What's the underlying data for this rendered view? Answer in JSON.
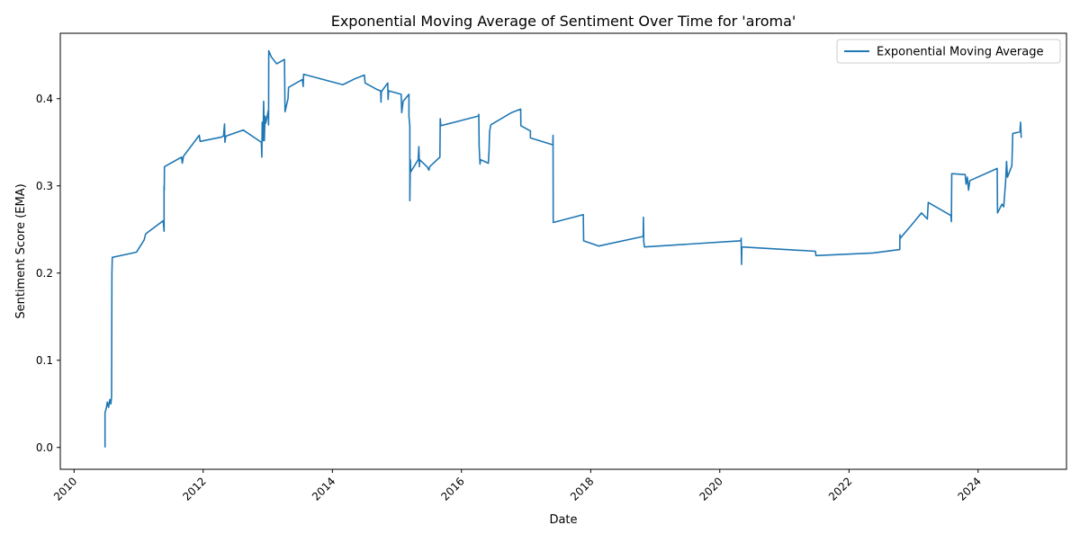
{
  "colors": {
    "line": "#1f77b4",
    "axis": "#000000",
    "legend_border": "#cccccc"
  },
  "chart_data": {
    "type": "line",
    "title": "Exponential Moving Average of Sentiment Over Time for 'aroma'",
    "xlabel": "Date",
    "ylabel": "Sentiment Score (EMA)",
    "legend": {
      "placement": "top-right",
      "entries": [
        "Exponential Moving Average"
      ]
    },
    "grid": false,
    "xlim": [
      "2009-10-15",
      "2025-05-15"
    ],
    "ylim": [
      -0.025,
      0.475
    ],
    "x_ticks": [
      "2010",
      "2012",
      "2014",
      "2016",
      "2018",
      "2020",
      "2022",
      "2024"
    ],
    "y_ticks": [
      "0.0",
      "0.1",
      "0.2",
      "0.3",
      "0.4"
    ],
    "series": [
      {
        "name": "Exponential Moving Average",
        "points": [
          [
            "2010-06-25",
            0.0
          ],
          [
            "2010-06-25",
            0.04
          ],
          [
            "2010-07-01",
            0.044
          ],
          [
            "2010-07-08",
            0.052
          ],
          [
            "2010-07-15",
            0.046
          ],
          [
            "2010-07-22",
            0.055
          ],
          [
            "2010-07-28",
            0.05
          ],
          [
            "2010-08-01",
            0.058
          ],
          [
            "2010-08-03",
            0.2
          ],
          [
            "2010-08-05",
            0.218
          ],
          [
            "2010-12-20",
            0.224
          ],
          [
            "2011-02-01",
            0.238
          ],
          [
            "2011-02-10",
            0.245
          ],
          [
            "2011-05-20",
            0.26
          ],
          [
            "2011-05-25",
            0.248
          ],
          [
            "2011-05-25",
            0.3
          ],
          [
            "2011-05-26",
            0.295
          ],
          [
            "2011-05-27",
            0.322
          ],
          [
            "2011-09-01",
            0.333
          ],
          [
            "2011-09-05",
            0.326
          ],
          [
            "2011-09-12",
            0.334
          ],
          [
            "2011-12-10",
            0.358
          ],
          [
            "2011-12-15",
            0.351
          ],
          [
            "2012-04-15",
            0.356
          ],
          [
            "2012-04-25",
            0.357
          ],
          [
            "2012-05-01",
            0.371
          ],
          [
            "2012-05-03",
            0.35
          ],
          [
            "2012-05-08",
            0.357
          ],
          [
            "2012-08-15",
            0.364
          ],
          [
            "2012-11-25",
            0.35
          ],
          [
            "2012-11-28",
            0.333
          ],
          [
            "2012-11-30",
            0.373
          ],
          [
            "2012-12-05",
            0.352
          ],
          [
            "2012-12-08",
            0.397
          ],
          [
            "2012-12-12",
            0.352
          ],
          [
            "2012-12-16",
            0.38
          ],
          [
            "2012-12-20",
            0.372
          ],
          [
            "2013-01-03",
            0.386
          ],
          [
            "2013-01-05",
            0.37
          ],
          [
            "2013-01-06",
            0.455
          ],
          [
            "2013-01-20",
            0.448
          ],
          [
            "2013-02-20",
            0.44
          ],
          [
            "2013-04-05",
            0.445
          ],
          [
            "2013-04-08",
            0.385
          ],
          [
            "2013-04-25",
            0.4
          ],
          [
            "2013-04-28",
            0.413
          ],
          [
            "2013-07-15",
            0.422
          ],
          [
            "2013-07-20",
            0.414
          ],
          [
            "2013-07-22",
            0.428
          ],
          [
            "2014-03-01",
            0.416
          ],
          [
            "2014-05-10",
            0.423
          ],
          [
            "2014-07-01",
            0.427
          ],
          [
            "2014-07-05",
            0.418
          ],
          [
            "2014-09-15",
            0.41
          ],
          [
            "2014-10-01",
            0.409
          ],
          [
            "2014-10-03",
            0.396
          ],
          [
            "2014-10-05",
            0.408
          ],
          [
            "2014-11-10",
            0.418
          ],
          [
            "2014-11-12",
            0.399
          ],
          [
            "2014-11-15",
            0.409
          ],
          [
            "2015-01-25",
            0.405
          ],
          [
            "2015-01-28",
            0.384
          ],
          [
            "2015-02-05",
            0.397
          ],
          [
            "2015-03-10",
            0.405
          ],
          [
            "2015-03-10",
            0.38
          ],
          [
            "2015-03-15",
            0.368
          ],
          [
            "2015-03-15",
            0.283
          ],
          [
            "2015-03-18",
            0.33
          ],
          [
            "2015-03-20",
            0.316
          ],
          [
            "2015-05-01",
            0.33
          ],
          [
            "2015-05-05",
            0.345
          ],
          [
            "2015-05-08",
            0.322
          ],
          [
            "2015-05-10",
            0.33
          ],
          [
            "2015-06-20",
            0.322
          ],
          [
            "2015-07-01",
            0.318
          ],
          [
            "2015-07-05",
            0.322
          ],
          [
            "2015-09-01",
            0.333
          ],
          [
            "2015-09-03",
            0.377
          ],
          [
            "2015-09-06",
            0.369
          ],
          [
            "2016-04-05",
            0.38
          ],
          [
            "2016-04-08",
            0.382
          ],
          [
            "2016-04-10",
            0.345
          ],
          [
            "2016-04-15",
            0.325
          ],
          [
            "2016-04-18",
            0.33
          ],
          [
            "2016-06-01",
            0.326
          ],
          [
            "2016-06-05",
            0.34
          ],
          [
            "2016-06-08",
            0.362
          ],
          [
            "2016-06-15",
            0.37
          ],
          [
            "2016-10-10",
            0.384
          ],
          [
            "2016-12-01",
            0.388
          ],
          [
            "2016-12-02",
            0.369
          ],
          [
            "2017-01-25",
            0.363
          ],
          [
            "2017-01-25",
            0.355
          ],
          [
            "2017-06-01",
            0.347
          ],
          [
            "2017-06-02",
            0.358
          ],
          [
            "2017-06-03",
            0.258
          ],
          [
            "2017-11-20",
            0.267
          ],
          [
            "2017-11-22",
            0.237
          ],
          [
            "2018-02-15",
            0.231
          ],
          [
            "2018-10-25",
            0.242
          ],
          [
            "2018-10-26",
            0.264
          ],
          [
            "2018-10-28",
            0.236
          ],
          [
            "2018-11-01",
            0.23
          ],
          [
            "2020-04-30",
            0.237
          ],
          [
            "2020-05-01",
            0.24
          ],
          [
            "2020-05-03",
            0.21
          ],
          [
            "2020-05-05",
            0.23
          ],
          [
            "2021-06-25",
            0.225
          ],
          [
            "2021-06-28",
            0.22
          ],
          [
            "2022-05-15",
            0.223
          ],
          [
            "2022-10-15",
            0.227
          ],
          [
            "2022-10-16",
            0.244
          ],
          [
            "2022-10-18",
            0.24
          ],
          [
            "2022-12-20",
            0.255
          ],
          [
            "2023-02-15",
            0.269
          ],
          [
            "2023-03-20",
            0.262
          ],
          [
            "2023-03-25",
            0.281
          ],
          [
            "2023-07-31",
            0.266
          ],
          [
            "2023-08-03",
            0.259
          ],
          [
            "2023-08-05",
            0.314
          ],
          [
            "2023-10-20",
            0.313
          ],
          [
            "2023-10-25",
            0.302
          ],
          [
            "2023-11-01",
            0.31
          ],
          [
            "2023-11-08",
            0.295
          ],
          [
            "2023-11-15",
            0.306
          ],
          [
            "2024-04-18",
            0.32
          ],
          [
            "2024-04-20",
            0.269
          ],
          [
            "2024-05-15",
            0.279
          ],
          [
            "2024-05-25",
            0.276
          ],
          [
            "2024-06-05",
            0.306
          ],
          [
            "2024-06-10",
            0.328
          ],
          [
            "2024-06-15",
            0.31
          ],
          [
            "2024-07-10",
            0.323
          ],
          [
            "2024-07-15",
            0.36
          ],
          [
            "2024-08-25",
            0.362
          ],
          [
            "2024-08-28",
            0.373
          ],
          [
            "2024-09-01",
            0.355
          ]
        ]
      }
    ]
  }
}
